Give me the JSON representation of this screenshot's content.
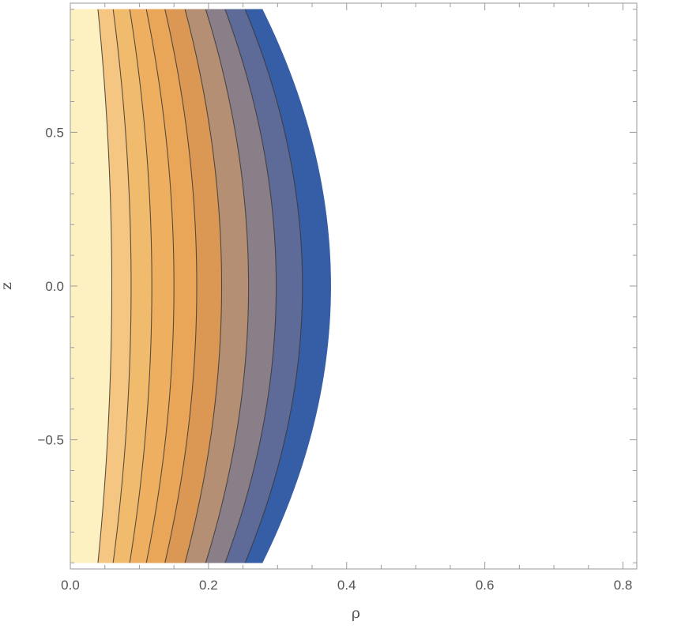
{
  "chart_data": {
    "type": "contour",
    "title": "",
    "xlabel": "ρ",
    "ylabel": "z",
    "xlim": [
      0.0,
      0.82
    ],
    "ylim": [
      -0.92,
      0.92
    ],
    "x_ticks": [
      {
        "value": 0.0,
        "label": "0.0"
      },
      {
        "value": 0.2,
        "label": "0.2"
      },
      {
        "value": 0.4,
        "label": "0.4"
      },
      {
        "value": 0.6,
        "label": "0.6"
      },
      {
        "value": 0.8,
        "label": "0.8"
      }
    ],
    "y_ticks": [
      {
        "value": -0.5,
        "label": "−0.5"
      },
      {
        "value": 0.0,
        "label": "0.0"
      },
      {
        "value": 0.5,
        "label": "0.5"
      }
    ],
    "domain_z": [
      -0.9,
      0.9
    ],
    "grid": false,
    "legend": "none",
    "contours": [
      {
        "rho_center": 0.06,
        "rho_edge": 0.04
      },
      {
        "rho_center": 0.088,
        "rho_edge": 0.062
      },
      {
        "rho_center": 0.118,
        "rho_edge": 0.086
      },
      {
        "rho_center": 0.15,
        "rho_edge": 0.11
      },
      {
        "rho_center": 0.183,
        "rho_edge": 0.137
      },
      {
        "rho_center": 0.219,
        "rho_edge": 0.166
      },
      {
        "rho_center": 0.258,
        "rho_edge": 0.196
      },
      {
        "rho_center": 0.298,
        "rho_edge": 0.224
      },
      {
        "rho_center": 0.336,
        "rho_edge": 0.253
      }
    ],
    "outer_boundary": {
      "rho_center": 0.377,
      "rho_edge": 0.278
    },
    "band_colors": [
      "#fdf1c2",
      "#f4c682",
      "#f1bb6d",
      "#eeb060",
      "#e9a658",
      "#db9855",
      "#b48f74",
      "#8a7f88",
      "#5e6a98",
      "#365ea6"
    ]
  }
}
